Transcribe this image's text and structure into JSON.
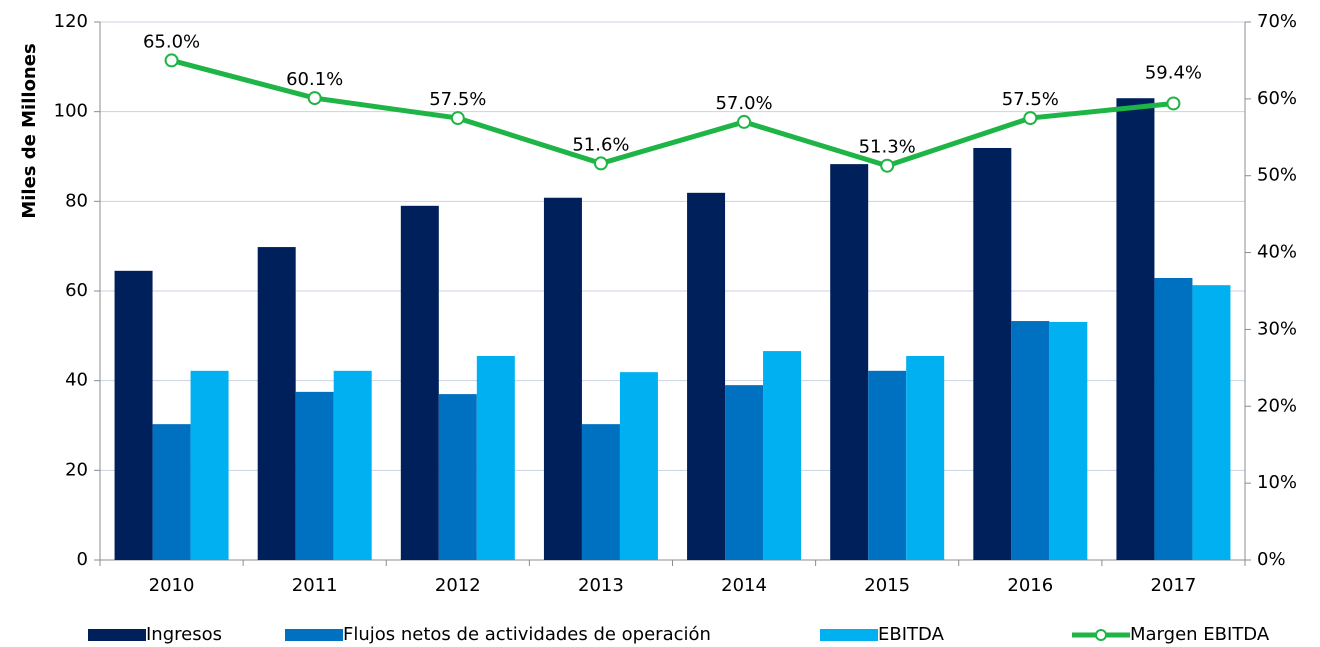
{
  "chart_data": {
    "type": "bar",
    "y_label": "Miles de Millones",
    "categories": [
      "2010",
      "2011",
      "2012",
      "2013",
      "2014",
      "2015",
      "2016",
      "2017"
    ],
    "series": [
      {
        "name": "Ingresos",
        "color": "#00205b",
        "values": [
          64.5,
          69.8,
          79,
          80.8,
          81.9,
          88.3,
          91.9,
          103
        ]
      },
      {
        "name": "Flujos netos de actividades de operación",
        "color": "#0070c0",
        "values": [
          30.3,
          37.5,
          37,
          30.3,
          39,
          42.2,
          53.3,
          62.9
        ]
      },
      {
        "name": "EBITDA",
        "color": "#00b0f0",
        "values": [
          42.2,
          42.2,
          45.5,
          41.9,
          46.6,
          45.5,
          53.1,
          61.3
        ]
      },
      {
        "name": "Margen EBITDA",
        "type": "line",
        "axis": "y2",
        "color": "#1eb446",
        "values": [
          65.0,
          60.1,
          57.5,
          51.6,
          57.0,
          51.3,
          57.5,
          59.4
        ],
        "value_labels": [
          "65.0%",
          "60.1%",
          "57.5%",
          "51.6%",
          "57.0%",
          "51.3%",
          "57.5%",
          "59.4%"
        ]
      }
    ],
    "ylim": [
      0,
      120
    ],
    "yticks": [
      0,
      20,
      40,
      60,
      80,
      100,
      120
    ],
    "y2lim": [
      0,
      70
    ],
    "y2ticks": [
      {
        "value": 0,
        "label": "0%"
      },
      {
        "value": 10,
        "label": "10%"
      },
      {
        "value": 20,
        "label": "20%"
      },
      {
        "value": 30,
        "label": "30%"
      },
      {
        "value": 40,
        "label": "40%"
      },
      {
        "value": 50,
        "label": "50%"
      },
      {
        "value": 60,
        "label": "60%"
      },
      {
        "value": 70,
        "label": "70%"
      }
    ],
    "grid": true,
    "legend": "bottom"
  }
}
